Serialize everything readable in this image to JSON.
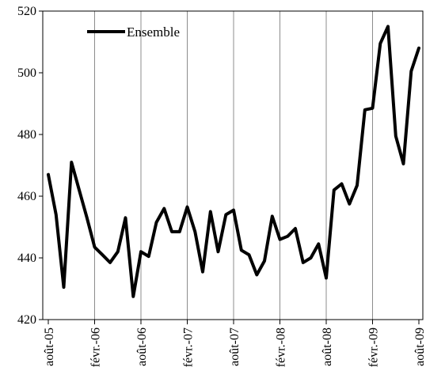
{
  "chart_data": {
    "type": "line",
    "title": "",
    "xlabel": "",
    "ylabel": "",
    "ylim": [
      420,
      520
    ],
    "yticks": [
      420,
      440,
      460,
      480,
      500,
      520
    ],
    "grid": "vertical",
    "legend": "top-left",
    "x_tick_labels": [
      "août-05",
      "févr.-06",
      "août-06",
      "févr.-07",
      "août-07",
      "févr.-08",
      "août-08",
      "févr.-09",
      "août-09"
    ],
    "x_start": "2005-08",
    "series": [
      {
        "name": "Ensemble",
        "color": "#000000",
        "values": [
          467,
          454,
          430.5,
          471,
          462,
          453,
          443.5,
          441,
          438.5,
          442,
          453,
          427.5,
          442,
          440.5,
          451.5,
          456,
          448.5,
          448.5,
          456.5,
          448.5,
          435.5,
          455,
          442,
          454,
          455.5,
          442.5,
          441,
          434.5,
          439,
          453.5,
          446,
          447,
          449.5,
          438.5,
          440,
          444.5,
          433.5,
          462,
          464,
          457.5,
          463.5,
          488,
          488.5,
          509.5,
          515,
          479.5,
          470.5,
          500.5,
          508
        ]
      }
    ]
  }
}
